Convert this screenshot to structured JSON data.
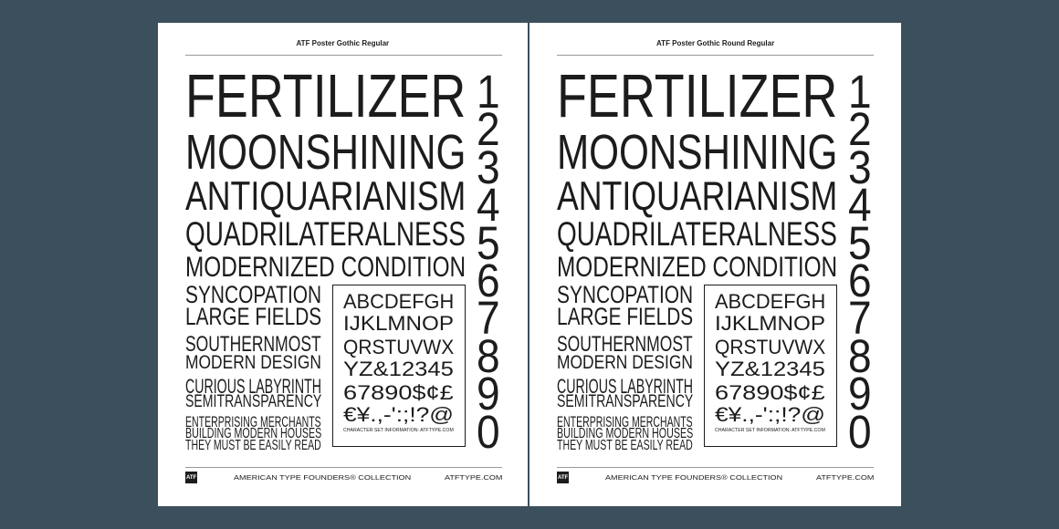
{
  "colors": {
    "background": "#3b4f5c",
    "page": "#ffffff",
    "ink": "#1c1c1c",
    "rule": "#999999"
  },
  "pages": [
    {
      "header": "ATF Poster Gothic Regular",
      "words": [
        "FERTILIZER",
        "MOONSHINING",
        "ANTIQUARIANISM",
        "QUADRILATERALNESS",
        "MODERNIZED CONDITION",
        "SYNCOPATION",
        "LARGE FIELDS",
        "SOUTHERNMOST",
        "MODERN DESIGN",
        "CURIOUS LABYRINTH",
        "SEMITRANSPARENCY",
        "ENTERPRISING MERCHANTS",
        "BUILDING MODERN HOUSES",
        "THEY MUST BE EASILY READ"
      ],
      "numerals": [
        "1",
        "2",
        "3",
        "4",
        "5",
        "6",
        "7",
        "8",
        "9",
        "0"
      ],
      "charset": [
        "ABCDEFGH",
        "IJKLMNOP",
        "QRSTUVWX",
        "YZ&12345",
        "67890$¢£",
        "€¥.,-':;!?@"
      ],
      "charset_caption": "CHARACTER SET INFORMATION: ATFTYPE.COM",
      "footer": {
        "logo": "ATF",
        "collection": "AMERICAN TYPE FOUNDERS® COLLECTION",
        "site": "ATFTYPE.COM"
      }
    },
    {
      "header": "ATF Poster Gothic Round Regular",
      "words": [
        "FERTILIZER",
        "MOONSHINING",
        "ANTIQUARIANISM",
        "QUADRILATERALNESS",
        "MODERNIZED CONDITION",
        "SYNCOPATION",
        "LARGE FIELDS",
        "SOUTHERNMOST",
        "MODERN DESIGN",
        "CURIOUS LABYRINTH",
        "SEMITRANSPARENCY",
        "ENTERPRISING MERCHANTS",
        "BUILDING MODERN HOUSES",
        "THEY MUST BE EASILY READ"
      ],
      "numerals": [
        "1",
        "2",
        "3",
        "4",
        "5",
        "6",
        "7",
        "8",
        "9",
        "0"
      ],
      "charset": [
        "ABCDEFGH",
        "IJKLMNOP",
        "QRSTUVWX",
        "YZ&12345",
        "67890$¢£",
        "€¥.,-':;!?@"
      ],
      "charset_caption": "CHARACTER SET INFORMATION: ATFTYPE.COM",
      "footer": {
        "logo": "ATF",
        "collection": "AMERICAN TYPE FOUNDERS® COLLECTION",
        "site": "ATFTYPE.COM"
      }
    }
  ]
}
